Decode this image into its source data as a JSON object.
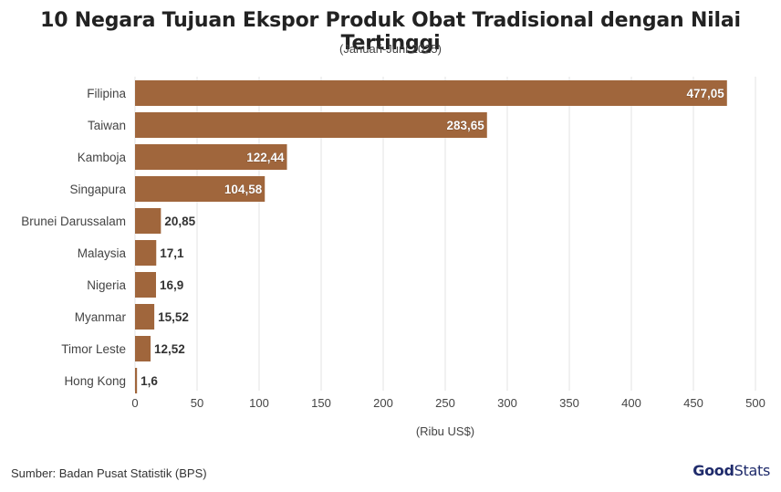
{
  "chart_data": {
    "type": "bar",
    "orientation": "horizontal",
    "title": "10 Negara Tujuan Ekspor Produk Obat Tradisional dengan Nilai Tertinggi",
    "subtitle": "(Januari-Juni 2025)",
    "xlabel": "(Ribu US$)",
    "ylabel": "",
    "xlim": [
      0,
      500
    ],
    "xticks": [
      "0",
      "50",
      "100",
      "150",
      "200",
      "250",
      "300",
      "350",
      "400",
      "450",
      "500"
    ],
    "grid": true,
    "categories": [
      "Filipina",
      "Taiwan",
      "Kamboja",
      "Singapura",
      "Brunei Darussalam",
      "Malaysia",
      "Nigeria",
      "Myanmar",
      "Timor Leste",
      "Hong Kong"
    ],
    "values": [
      477.05,
      283.65,
      122.44,
      104.58,
      20.85,
      17.1,
      16.9,
      15.52,
      12.52,
      1.6
    ],
    "value_labels": [
      "477,05",
      "283,65",
      "122,44",
      "104,58",
      "20,85",
      "17,1",
      "16,9",
      "15,52",
      "12,52",
      "1,6"
    ],
    "bar_color": "#a0663c"
  },
  "footer": {
    "source": "Sumber: Badan Pusat Statistik (BPS)",
    "logo_good": "Good",
    "logo_stats": "Stats"
  },
  "colors": {
    "logo": "#1f2b6b"
  }
}
